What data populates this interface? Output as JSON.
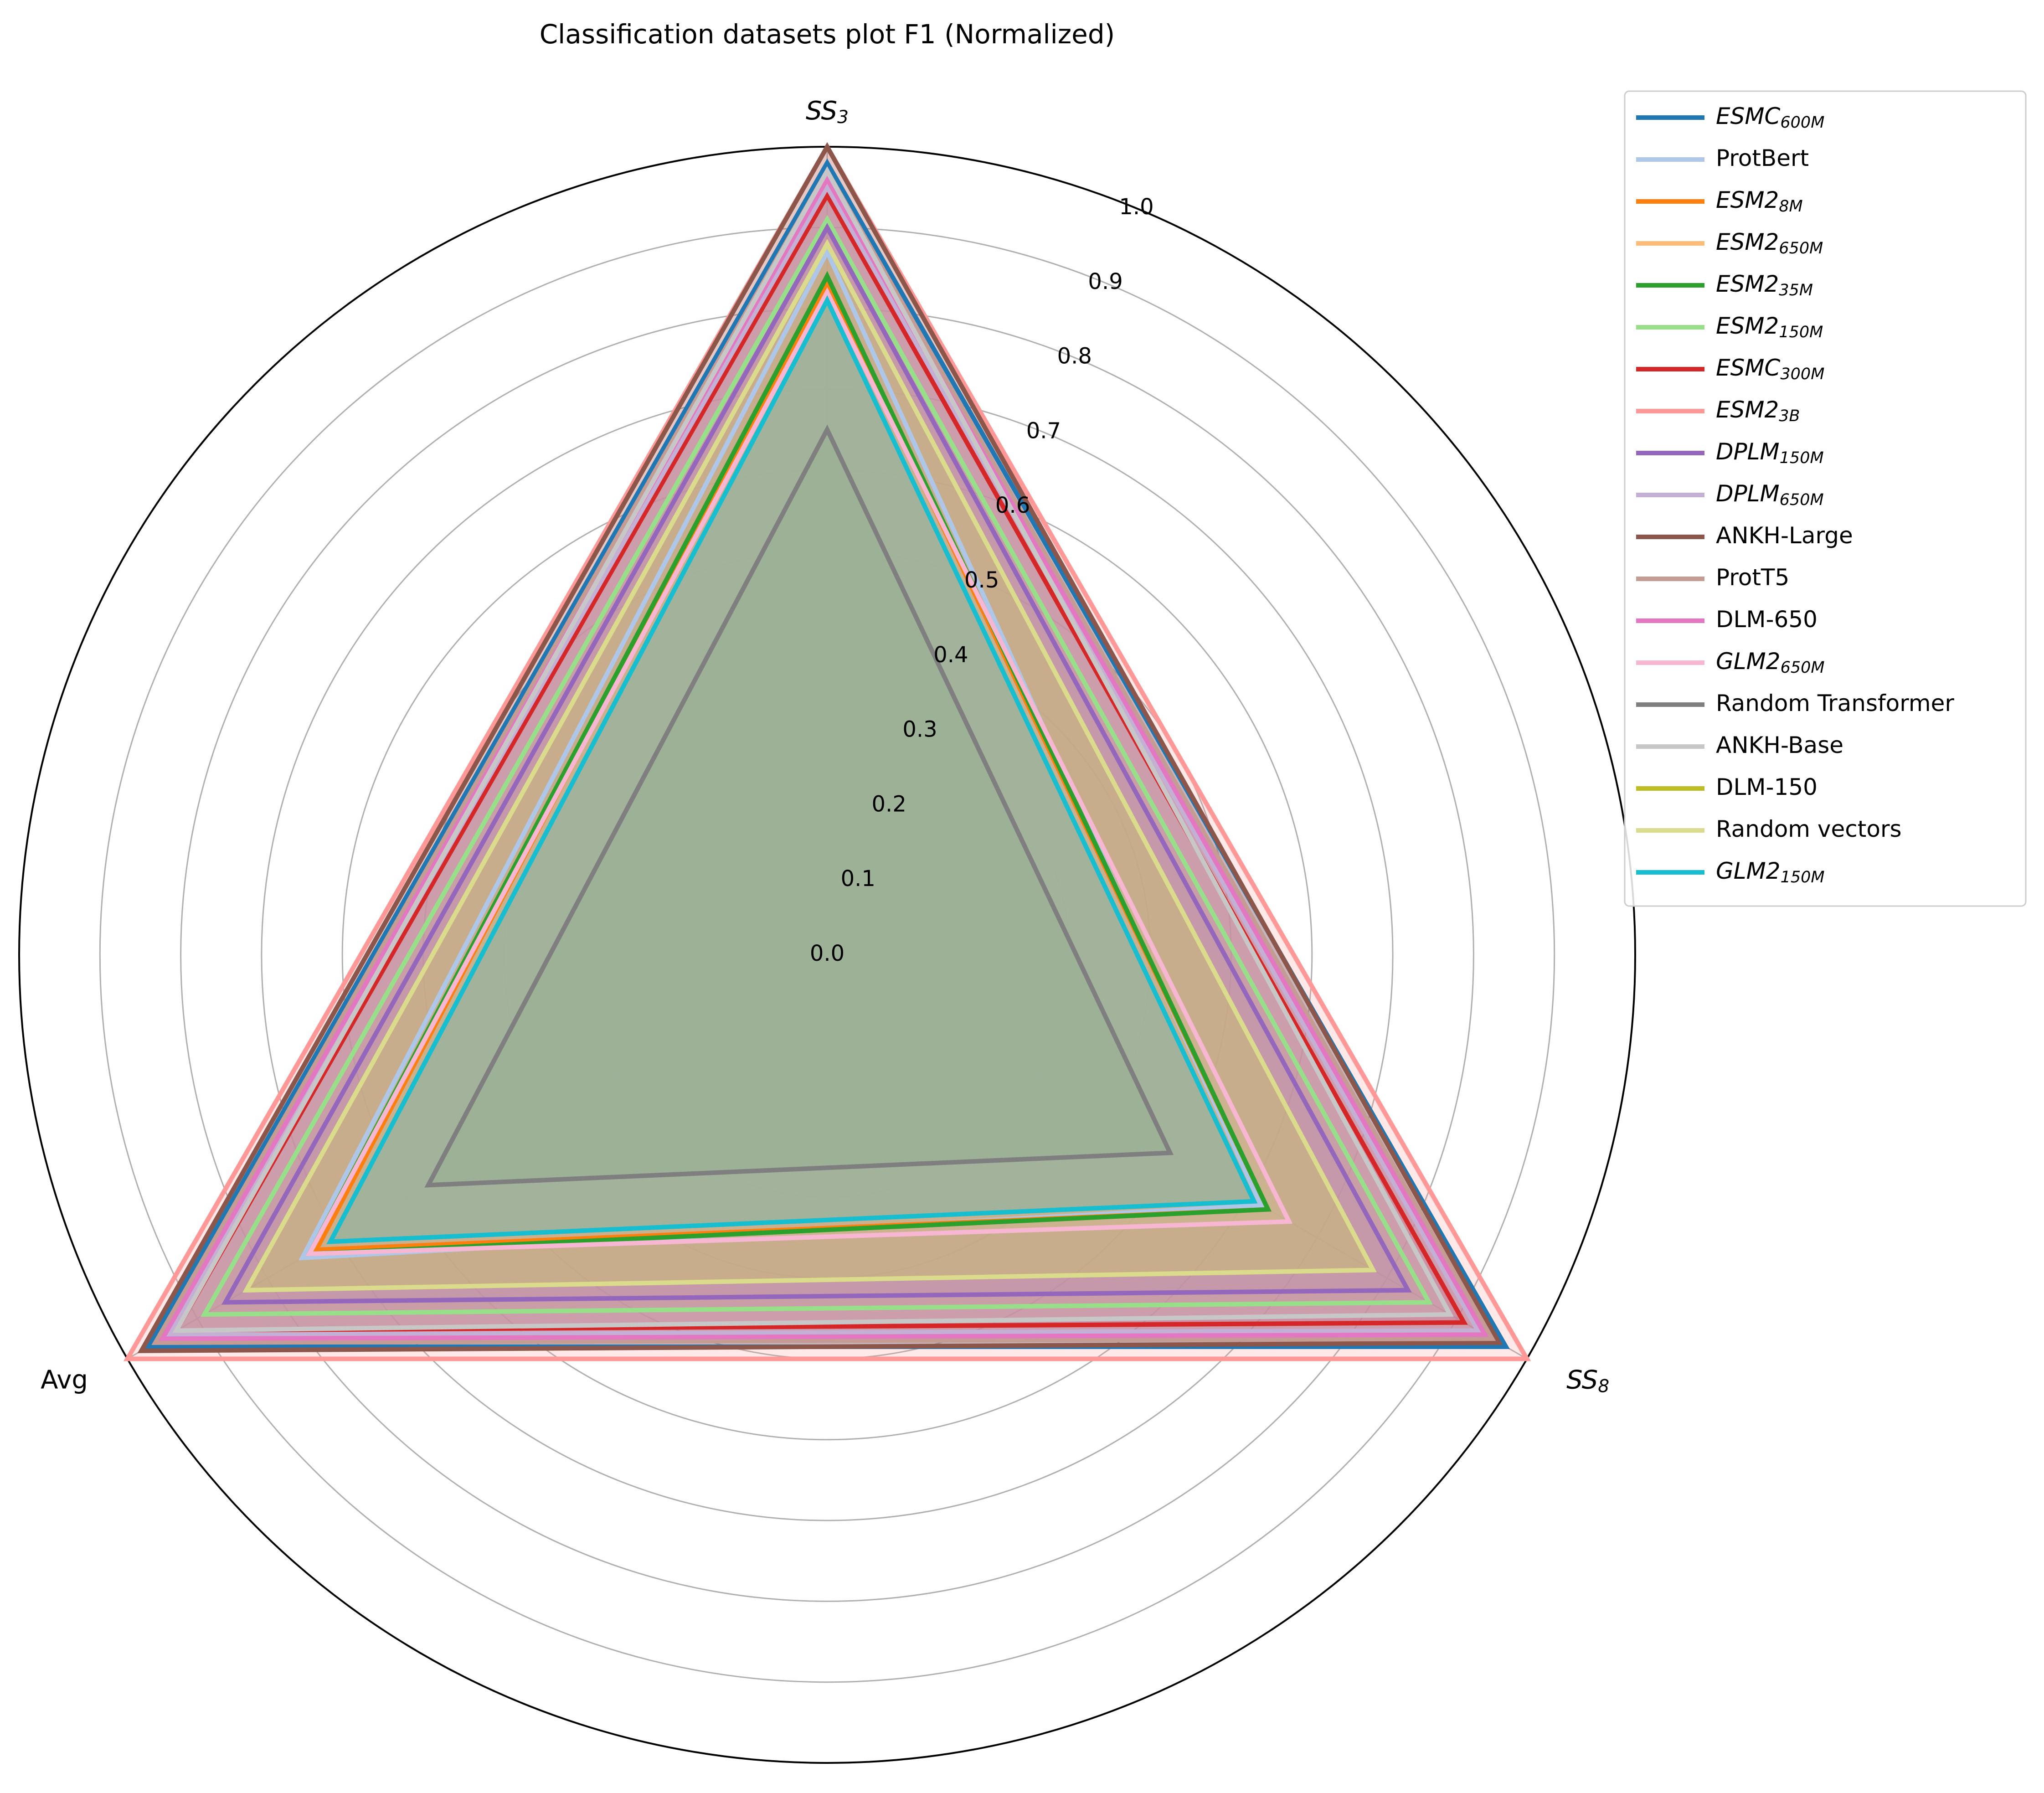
{
  "chart_data": {
    "type": "radar",
    "title": "Classification datasets plot F1 (Normalized)",
    "axes": [
      {
        "label": "SS",
        "sub": "3",
        "italic": true
      },
      {
        "label": "SS",
        "sub": "8",
        "italic": true
      },
      {
        "label": "Avg",
        "sub": "",
        "italic": false
      }
    ],
    "rlim": [
      0,
      1.0
    ],
    "rticks": [
      "0.0",
      "0.1",
      "0.2",
      "0.3",
      "0.4",
      "0.5",
      "0.6",
      "0.7",
      "0.8",
      "0.9",
      "1.0"
    ],
    "grid": true,
    "legend_position": "outside top-right",
    "series": [
      {
        "name": "ESMC",
        "sub": "600M",
        "italic": true,
        "color": "#1f77b4",
        "values": [
          0.98,
          0.97,
          0.97
        ]
      },
      {
        "name": "ProtBert",
        "sub": "",
        "italic": false,
        "color": "#aec7e8",
        "values": [
          0.87,
          0.62,
          0.75
        ]
      },
      {
        "name": "ESM2",
        "sub": "8M",
        "italic": true,
        "color": "#ff7f0e",
        "values": [
          0.83,
          0.63,
          0.73
        ]
      },
      {
        "name": "ESM2",
        "sub": "650M",
        "italic": true,
        "color": "#ffbb78",
        "values": [
          0.96,
          0.95,
          0.95
        ]
      },
      {
        "name": "ESM2",
        "sub": "35M",
        "italic": true,
        "color": "#2ca02c",
        "values": [
          0.84,
          0.63,
          0.74
        ]
      },
      {
        "name": "ESM2",
        "sub": "150M",
        "italic": true,
        "color": "#98df8a",
        "values": [
          0.91,
          0.86,
          0.89
        ]
      },
      {
        "name": "ESMC",
        "sub": "300M",
        "italic": true,
        "color": "#d62728",
        "values": [
          0.94,
          0.91,
          0.93
        ]
      },
      {
        "name": "ESM2",
        "sub": "3B",
        "italic": true,
        "color": "#ff9896",
        "values": [
          1.0,
          1.0,
          1.0
        ]
      },
      {
        "name": "DPLM",
        "sub": "150M",
        "italic": true,
        "color": "#9467bd",
        "values": [
          0.9,
          0.83,
          0.86
        ]
      },
      {
        "name": "DPLM",
        "sub": "650M",
        "italic": true,
        "color": "#c5b0d5",
        "values": [
          0.95,
          0.93,
          0.94
        ]
      },
      {
        "name": "ANKH-Large",
        "sub": "",
        "italic": false,
        "color": "#8c564b",
        "values": [
          1.0,
          0.96,
          0.98
        ]
      },
      {
        "name": "ProtT5",
        "sub": "",
        "italic": false,
        "color": "#c49c94",
        "values": [
          0.97,
          0.95,
          0.96
        ]
      },
      {
        "name": "DLM-650",
        "sub": "",
        "italic": false,
        "color": "#e377c2",
        "values": [
          0.96,
          0.94,
          0.95
        ]
      },
      {
        "name": "GLM2",
        "sub": "650M",
        "italic": true,
        "color": "#f7b6d2",
        "values": [
          0.82,
          0.66,
          0.74
        ]
      },
      {
        "name": "Random Transformer",
        "sub": "",
        "italic": false,
        "color": "#7f7f7f",
        "values": [
          0.65,
          0.49,
          0.57
        ]
      },
      {
        "name": "ANKH-Base",
        "sub": "",
        "italic": false,
        "color": "#c7c7c7",
        "values": [
          0.97,
          0.89,
          0.93
        ]
      },
      {
        "name": "DLM-150",
        "sub": "",
        "italic": false,
        "color": "#bcbd22",
        "values": [
          0.88,
          0.78,
          0.83
        ]
      },
      {
        "name": "Random vectors",
        "sub": "",
        "italic": false,
        "color": "#dbdb8d",
        "values": [
          0.88,
          0.78,
          0.83
        ]
      },
      {
        "name": "GLM2",
        "sub": "150M",
        "italic": true,
        "color": "#17becf",
        "values": [
          0.81,
          0.61,
          0.71
        ]
      }
    ]
  }
}
